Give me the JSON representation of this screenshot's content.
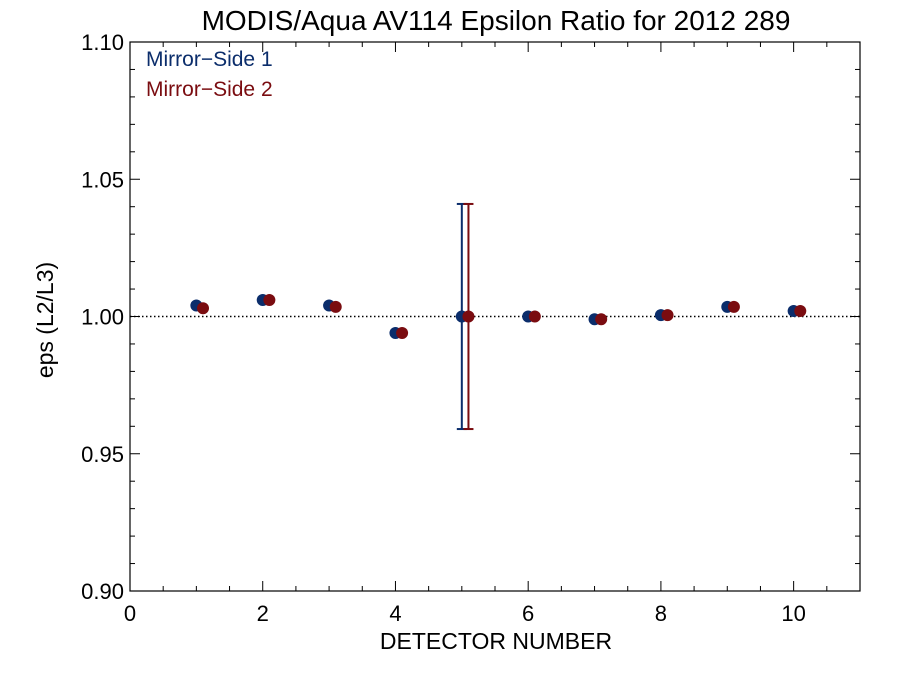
{
  "chart_data": {
    "type": "scatter",
    "title": "MODIS/Aqua AV114 Epsilon Ratio for 2012 289",
    "xlabel": "DETECTOR NUMBER",
    "ylabel": "eps (L2/L3)",
    "xlim": [
      0,
      11
    ],
    "ylim": [
      0.9,
      1.1
    ],
    "xticks": [
      "0",
      "2",
      "4",
      "6",
      "8",
      "10"
    ],
    "yticks": [
      "0.90",
      "0.95",
      "1.00",
      "1.05",
      "1.10"
    ],
    "reference_line": 1.0,
    "legend_position": "top-left",
    "grid": false,
    "series": [
      {
        "name": "Mirror−Side 1",
        "color": "#0b2d6b",
        "x": [
          1,
          2,
          3,
          4,
          5,
          6,
          7,
          8,
          9,
          10
        ],
        "y": [
          1.004,
          1.006,
          1.004,
          0.994,
          1.0,
          1.0,
          0.999,
          1.0005,
          1.0035,
          1.002
        ],
        "error_bars": [
          {
            "x": 5,
            "low": 0.959,
            "high": 1.041
          }
        ]
      },
      {
        "name": "Mirror−Side 2",
        "color": "#7a0c10",
        "x": [
          1.1,
          2.1,
          3.1,
          4.1,
          5.1,
          6.1,
          7.1,
          8.1,
          9.1,
          10.1
        ],
        "y": [
          1.003,
          1.006,
          1.0035,
          0.994,
          1.0,
          1.0,
          0.999,
          1.0005,
          1.0035,
          1.002
        ],
        "error_bars": [
          {
            "x": 5.1,
            "low": 0.959,
            "high": 1.041
          }
        ]
      }
    ]
  }
}
